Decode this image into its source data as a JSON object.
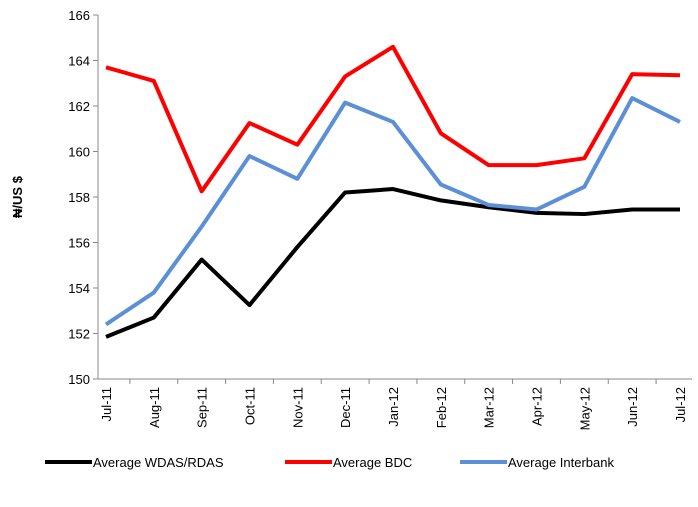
{
  "chart_data": {
    "type": "line",
    "y_label": "₦/US $",
    "categories": [
      "Jul-11",
      "Aug-11",
      "Sep-11",
      "Oct-11",
      "Nov-11",
      "Dec-11",
      "Jan-12",
      "Feb-12",
      "Mar-12",
      "Apr-12",
      "May-12",
      "Jun-12",
      "Jul-12"
    ],
    "series": [
      {
        "name": "Average WDAS/RDAS",
        "color": "#000000",
        "values": [
          151.85,
          152.7,
          155.25,
          153.25,
          155.8,
          158.2,
          158.35,
          157.85,
          157.55,
          157.3,
          157.25,
          157.45,
          157.45
        ]
      },
      {
        "name": "Average BDC",
        "color": "#ff0000",
        "values": [
          163.7,
          163.1,
          158.25,
          161.25,
          160.3,
          163.3,
          164.6,
          160.8,
          159.4,
          159.4,
          159.7,
          163.4,
          163.35
        ]
      },
      {
        "name": "Average Interbank",
        "color": "#5b8fd6",
        "values": [
          152.4,
          153.8,
          156.7,
          159.8,
          158.8,
          162.15,
          161.3,
          158.55,
          157.65,
          157.45,
          158.45,
          162.35,
          161.3
        ]
      }
    ],
    "ylim": [
      150,
      166
    ],
    "yticks": [
      150,
      152,
      154,
      156,
      158,
      160,
      162,
      164,
      166
    ],
    "grid": false,
    "legend": "bottom"
  }
}
